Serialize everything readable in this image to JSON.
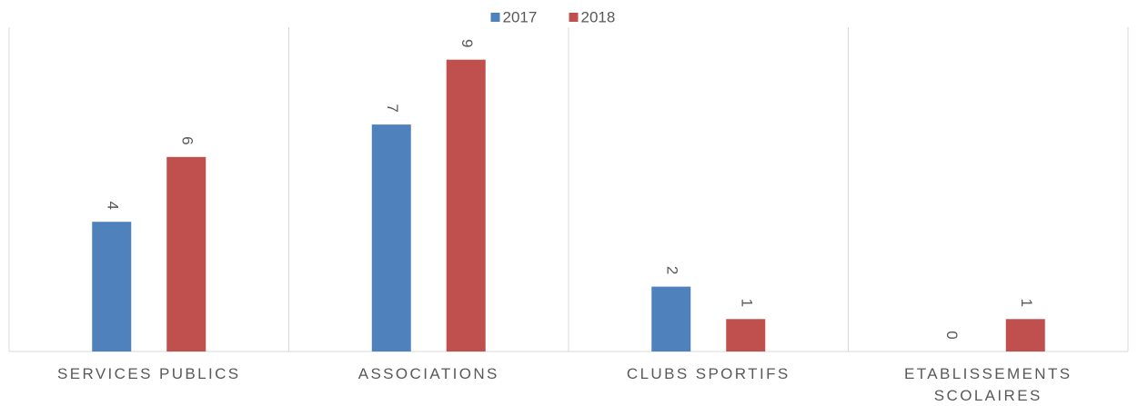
{
  "chart_data": {
    "type": "bar",
    "categories": [
      "SERVICES PUBLICS",
      "ASSOCIATIONS",
      "CLUBS SPORTIFS",
      "ETABLISSEMENTS SCOLAIRES"
    ],
    "series": [
      {
        "name": "2017",
        "color": "#4f81bd",
        "values": [
          4,
          7,
          2,
          0
        ]
      },
      {
        "name": "2018",
        "color": "#c0504d",
        "values": [
          6,
          9,
          1,
          1
        ]
      }
    ],
    "ylim": [
      0,
      10
    ],
    "legend": "top"
  }
}
